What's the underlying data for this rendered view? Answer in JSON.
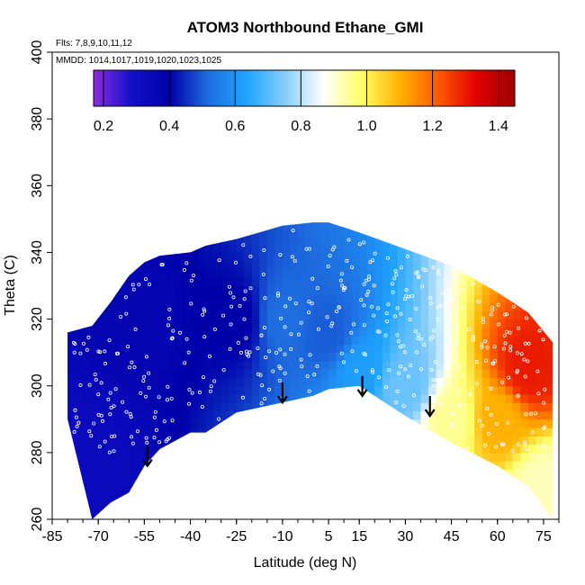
{
  "chart_data": {
    "type": "heatmap",
    "title": "ATOM3 Northbound Ethane_GMI",
    "annotations": [
      "Flts: 7,8,9,10,11,12",
      "MMDD: 1014,1017,1019,1020,1023,1025"
    ],
    "xlabel": "Latitude (deg N)",
    "ylabel": "Theta (C)",
    "xlim": [
      -85,
      80
    ],
    "ylim": [
      260,
      400
    ],
    "x_ticks": [
      "-85",
      "-70",
      "-55",
      "-40",
      "-25",
      "-10",
      "5",
      "15",
      "30",
      "45",
      "60",
      "75"
    ],
    "y_ticks": [
      "260",
      "280",
      "300",
      "320",
      "340",
      "360",
      "380",
      "400"
    ],
    "colorbar": {
      "ticks": [
        "0.2",
        "0.4",
        "0.6",
        "0.8",
        "1.0",
        "1.2",
        "1.4"
      ],
      "range": [
        0.17,
        1.45
      ],
      "colors": [
        "#8a2be2",
        "#1010c8",
        "#0000a8",
        "#1e6ee0",
        "#1ea4ff",
        "#87cefa",
        "#ffffff",
        "#ffff66",
        "#ffb000",
        "#ff5a00",
        "#e00000",
        "#a00000"
      ]
    },
    "data_envelope": {
      "latitude": [
        -80,
        -72,
        -66,
        -60,
        -55,
        -50,
        -40,
        -35,
        -25,
        -10,
        0,
        5,
        15,
        30,
        45,
        60,
        70,
        78
      ],
      "theta_top": [
        316,
        318,
        325,
        333,
        337,
        339,
        340,
        342,
        344,
        348,
        349,
        349,
        346,
        341,
        336,
        328,
        322,
        313
      ],
      "theta_bottom": [
        290,
        260,
        265,
        268,
        276,
        281,
        286,
        286,
        292,
        295,
        297,
        299,
        300,
        291,
        283,
        276,
        270,
        260
      ]
    },
    "field_samples": [
      {
        "lat": -75,
        "theta": 280,
        "ethane": 0.33
      },
      {
        "lat": -55,
        "theta": 320,
        "ethane": 0.37
      },
      {
        "lat": -25,
        "theta": 320,
        "ethane": 0.4
      },
      {
        "lat": -10,
        "theta": 320,
        "ethane": 0.52
      },
      {
        "lat": 5,
        "theta": 315,
        "ethane": 0.5
      },
      {
        "lat": 15,
        "theta": 305,
        "ethane": 0.62
      },
      {
        "lat": 30,
        "theta": 300,
        "ethane": 0.72
      },
      {
        "lat": 45,
        "theta": 290,
        "ethane": 0.95
      },
      {
        "lat": 60,
        "theta": 290,
        "ethane": 1.1
      },
      {
        "lat": 70,
        "theta": 305,
        "ethane": 1.3
      },
      {
        "lat": 75,
        "theta": 270,
        "ethane": 0.92
      }
    ],
    "tropopause_arrows": [
      {
        "lat": -54,
        "theta": 276
      },
      {
        "lat": -10,
        "theta": 295
      },
      {
        "lat": 16,
        "theta": 297
      },
      {
        "lat": 38,
        "theta": 291
      }
    ],
    "grid": false,
    "legend": "colorbar at top"
  }
}
